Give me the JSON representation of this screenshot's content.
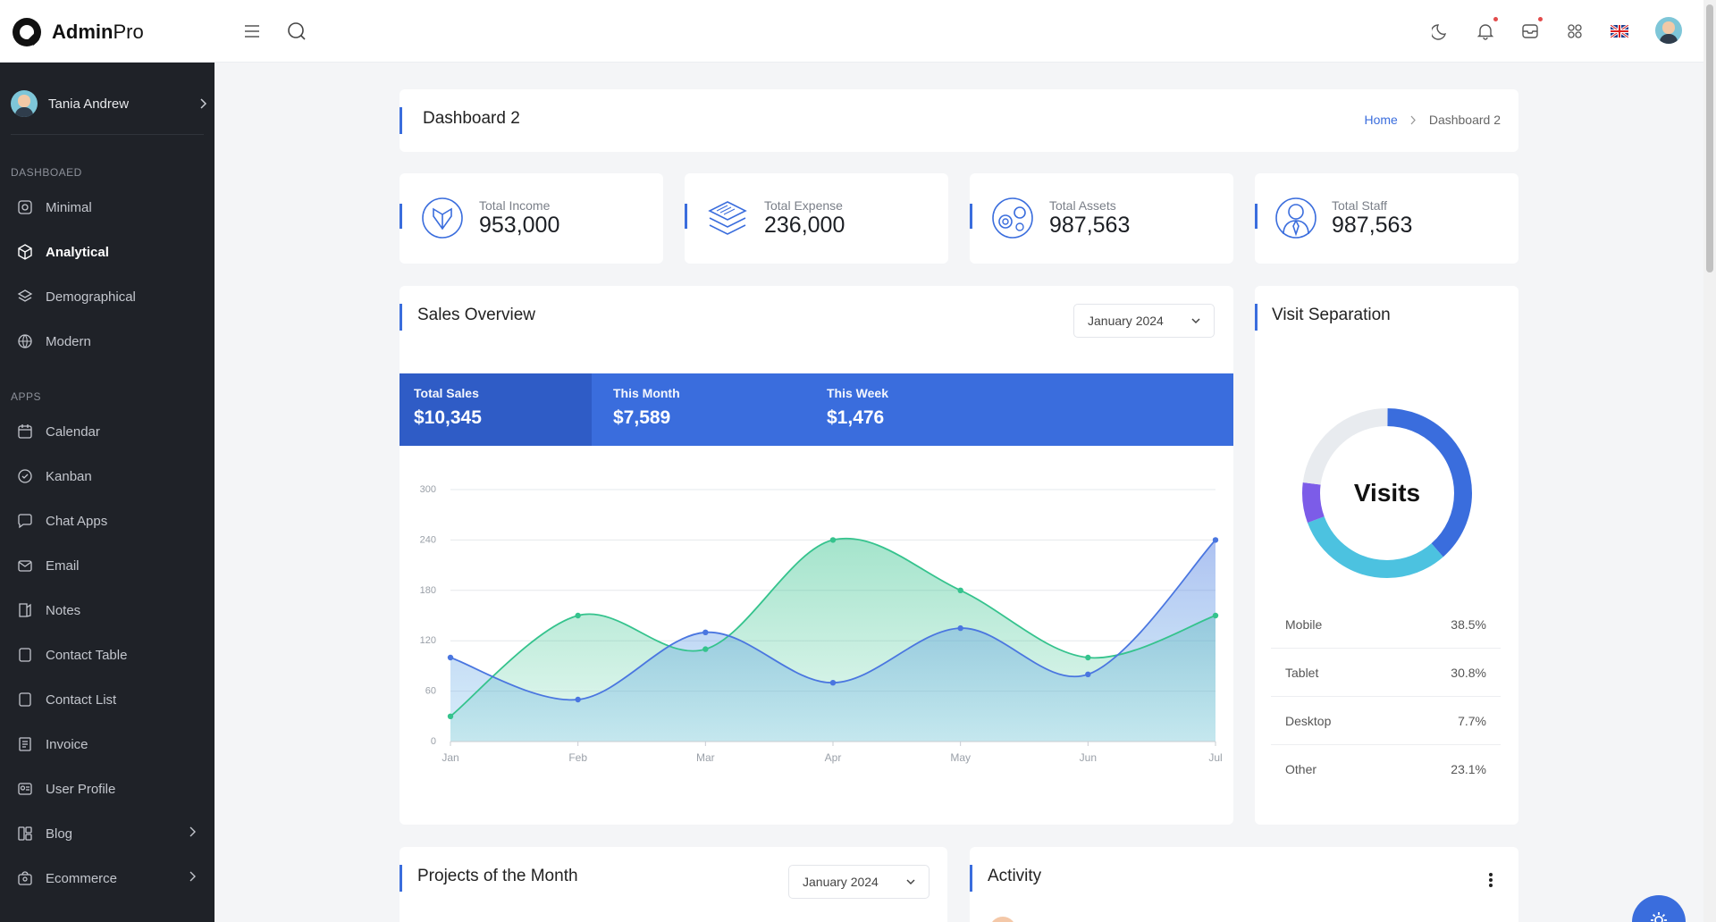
{
  "header": {
    "brand_bold": "Admin",
    "brand_light": "Pro",
    "icons": [
      "menu-icon",
      "search-icon",
      "moon-icon",
      "bell-icon",
      "inbox-icon",
      "apps-icon",
      "uk-flag-icon",
      "avatar"
    ]
  },
  "sidebar": {
    "user_name": "Tania Andrew",
    "sections": [
      {
        "title": "DASHBOAED",
        "items": [
          {
            "label": "Minimal",
            "icon": "minimal-icon",
            "active": false
          },
          {
            "label": "Analytical",
            "icon": "cube-icon",
            "active": true
          },
          {
            "label": "Demographical",
            "icon": "layers-icon",
            "active": false
          },
          {
            "label": "Modern",
            "icon": "globe-icon",
            "active": false
          }
        ]
      },
      {
        "title": "APPS",
        "items": [
          {
            "label": "Calendar",
            "icon": "calendar-icon"
          },
          {
            "label": "Kanban",
            "icon": "kanban-icon"
          },
          {
            "label": "Chat Apps",
            "icon": "chat-icon"
          },
          {
            "label": "Email",
            "icon": "email-icon"
          },
          {
            "label": "Notes",
            "icon": "notes-icon"
          },
          {
            "label": "Contact Table",
            "icon": "contact-table-icon"
          },
          {
            "label": "Contact List",
            "icon": "contact-list-icon"
          },
          {
            "label": "Invoice",
            "icon": "invoice-icon"
          },
          {
            "label": "User Profile",
            "icon": "user-profile-icon"
          },
          {
            "label": "Blog",
            "icon": "blog-icon",
            "has_children": true
          },
          {
            "label": "Ecommerce",
            "icon": "ecommerce-icon",
            "has_children": true
          }
        ]
      }
    ]
  },
  "page": {
    "title": "Dashboard 2",
    "breadcrumb_home": "Home",
    "breadcrumb_current": "Dashboard 2"
  },
  "stats": [
    {
      "label": "Total Income",
      "value": "953,000",
      "icon": "income-icon"
    },
    {
      "label": "Total Expense",
      "value": "236,000",
      "icon": "expense-icon"
    },
    {
      "label": "Total Assets",
      "value": "987,563",
      "icon": "assets-icon"
    },
    {
      "label": "Total Staff",
      "value": "987,563",
      "icon": "staff-icon"
    }
  ],
  "sales": {
    "title": "Sales Overview",
    "period": "January 2024",
    "summary": [
      {
        "label": "Total Sales",
        "value": "$10,345"
      },
      {
        "label": "This Month",
        "value": "$7,589"
      },
      {
        "label": "This Week",
        "value": "$1,476"
      }
    ]
  },
  "chart_data": {
    "type": "area",
    "categories": [
      "Jan",
      "Feb",
      "Mar",
      "Apr",
      "May",
      "Jun",
      "Jul"
    ],
    "yticks": [
      0,
      60,
      120,
      180,
      240,
      300
    ],
    "ylim": [
      0,
      300
    ],
    "grid": true,
    "series": [
      {
        "values": [
          100,
          50,
          130,
          70,
          135,
          80,
          240
        ],
        "color": "#4a76e0"
      },
      {
        "values": [
          30,
          150,
          110,
          240,
          180,
          100,
          150
        ],
        "color": "#35c38d"
      }
    ]
  },
  "visits": {
    "title": "Visit Separation",
    "center_label": "Visits",
    "rows": [
      {
        "label": "Mobile",
        "value": "38.5%",
        "pct": 38.5,
        "color": "#3a6ddd"
      },
      {
        "label": "Tablet",
        "value": "30.8%",
        "pct": 30.8,
        "color": "#4cc2e0"
      },
      {
        "label": "Desktop",
        "value": "7.7%",
        "pct": 7.7,
        "color": "#7c5ce8"
      },
      {
        "label": "Other",
        "value": "23.1%",
        "pct": 23.1,
        "color": "#e8ebef"
      }
    ]
  },
  "projects": {
    "title": "Projects of the Month",
    "period": "January 2024"
  },
  "activity": {
    "title": "Activity"
  }
}
